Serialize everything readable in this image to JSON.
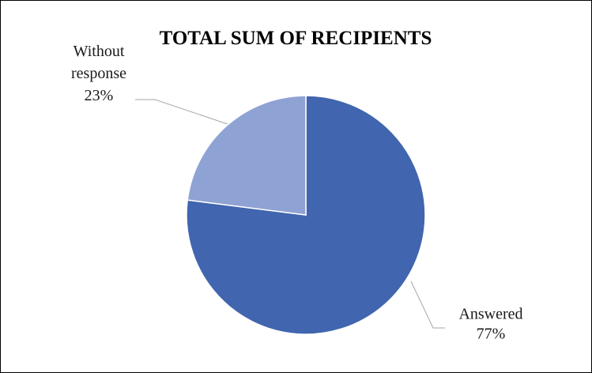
{
  "chart_data": {
    "type": "pie",
    "title": "TOTAL SUM OF RECIPIENTS",
    "start_angle_deg": 0,
    "direction": "clockwise",
    "slices": [
      {
        "label_lines": [
          "Answered"
        ],
        "percent_label": "77%",
        "value": 77,
        "color": "#4165ae"
      },
      {
        "label_lines": [
          "Without",
          "response"
        ],
        "percent_label": "23%",
        "value": 23,
        "color": "#8fa2d4"
      }
    ],
    "legend": "none",
    "data_labels": "outside-with-leader-lines"
  }
}
